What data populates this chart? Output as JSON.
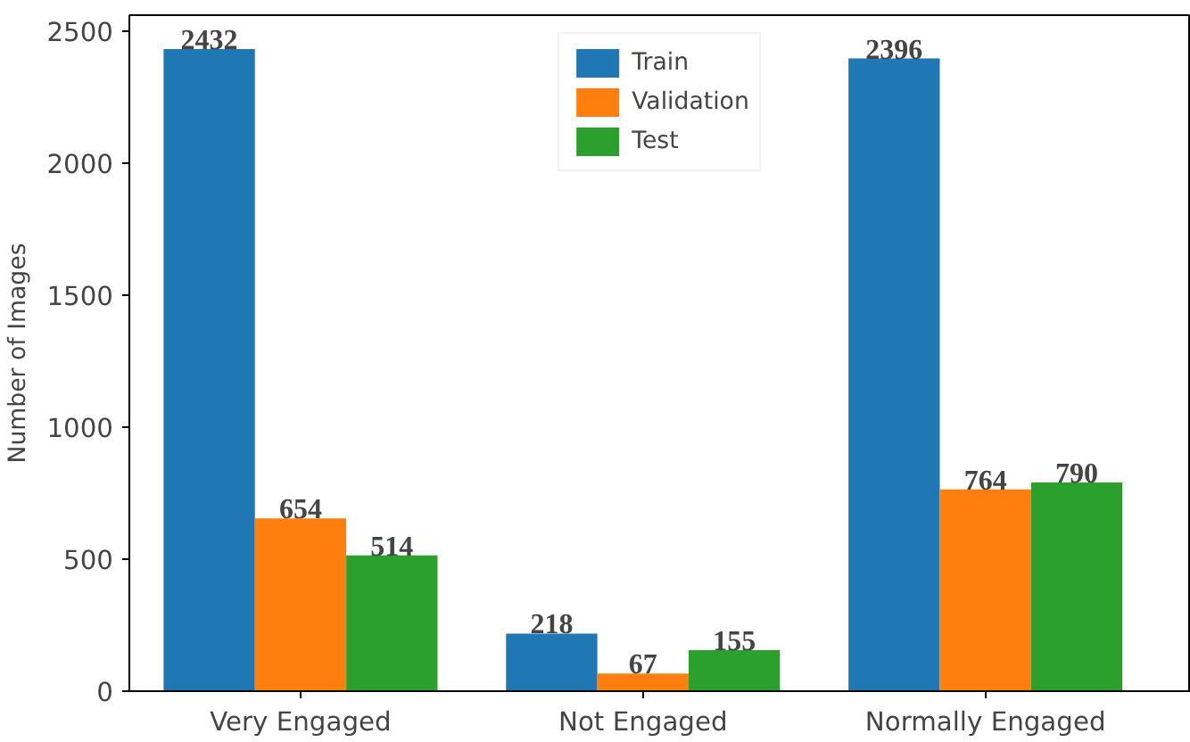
{
  "chart_data": {
    "type": "bar",
    "ylabel": "Number of Images",
    "categories": [
      "Very Engaged",
      "Not Engaged",
      "Normally Engaged"
    ],
    "series": [
      {
        "name": "Train",
        "color": "#1f77b4",
        "values": [
          2432,
          218,
          2396
        ]
      },
      {
        "name": "Validation",
        "color": "#ff7f0e",
        "values": [
          654,
          67,
          764
        ]
      },
      {
        "name": "Test",
        "color": "#2ca02c",
        "values": [
          514,
          155,
          790
        ]
      }
    ],
    "ylim": [
      0,
      2560
    ],
    "yticks": [
      0,
      500,
      1000,
      1500,
      2000,
      2500
    ],
    "grid": false,
    "legend": "top",
    "data_labels": true
  }
}
